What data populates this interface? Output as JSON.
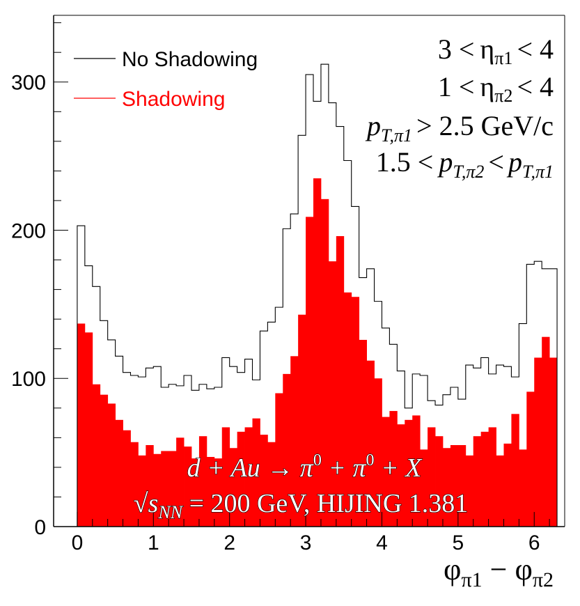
{
  "chart_data": {
    "type": "histogram",
    "x_edges": [
      0,
      0.1,
      0.2,
      0.3,
      0.4,
      0.5,
      0.6,
      0.7,
      0.8,
      0.9,
      1.0,
      1.1,
      1.2,
      1.3,
      1.4,
      1.5,
      1.6,
      1.7,
      1.8,
      1.9,
      2.0,
      2.1,
      2.2,
      2.3,
      2.4,
      2.5,
      2.6,
      2.7,
      2.8,
      2.9,
      3.0,
      3.1,
      3.2,
      3.3,
      3.4,
      3.5,
      3.6,
      3.7,
      3.8,
      3.9,
      4.0,
      4.1,
      4.2,
      4.3,
      4.4,
      4.5,
      4.6,
      4.7,
      4.8,
      4.9,
      5.0,
      5.1,
      5.2,
      5.3,
      5.4,
      5.5,
      5.6,
      5.7,
      5.8,
      5.9,
      6.0,
      6.1,
      6.2,
      6.3
    ],
    "series": [
      {
        "name": "No Shadowing",
        "style": "outline",
        "color": "#000000",
        "values": [
          203,
          176,
          162,
          139,
          126,
          115,
          104,
          102,
          101,
          107,
          108,
          94,
          96,
          95,
          102,
          92,
          96,
          93,
          94,
          114,
          108,
          104,
          113,
          99,
          132,
          138,
          148,
          201,
          211,
          264,
          305,
          287,
          312,
          286,
          270,
          247,
          216,
          168,
          174,
          152,
          134,
          123,
          105,
          80,
          103,
          102,
          85,
          82,
          89,
          94,
          86,
          109,
          107,
          114,
          103,
          109,
          108,
          101,
          137,
          177,
          179,
          174,
          174
        ]
      },
      {
        "name": "Shadowing",
        "style": "filled",
        "color": "#ff0000",
        "values": [
          137,
          131,
          96,
          89,
          83,
          72,
          65,
          57,
          48,
          55,
          49,
          51,
          51,
          60,
          54,
          46,
          61,
          47,
          46,
          67,
          53,
          64,
          67,
          73,
          62,
          57,
          90,
          103,
          115,
          143,
          209,
          235,
          221,
          179,
          196,
          158,
          155,
          126,
          112,
          100,
          74,
          78,
          69,
          72,
          75,
          52,
          67,
          61,
          53,
          55,
          55,
          48,
          61,
          64,
          67,
          48,
          56,
          76,
          52,
          91,
          114,
          128,
          114
        ]
      }
    ],
    "xlim": [
      -0.31,
      6.4
    ],
    "ylim": [
      0,
      345
    ],
    "x_ticks": [
      0,
      1,
      2,
      3,
      4,
      5,
      6
    ],
    "y_ticks": [
      0,
      100,
      200,
      300
    ],
    "x_tick_labels": [
      "0",
      "1",
      "2",
      "3",
      "4",
      "5",
      "6"
    ],
    "y_tick_labels": [
      "0",
      "100",
      "200",
      "300"
    ],
    "legend_placement": "top-left",
    "grid": false,
    "xlabel": "φπ1 − φπ2",
    "ylabel": ""
  },
  "legend": [
    {
      "label": "No Shadowing",
      "color": "#000000"
    },
    {
      "label": "Shadowing",
      "color": "#ff0000"
    }
  ],
  "cuts": {
    "line1": {
      "lo": "3 <",
      "var": "η",
      "sub": "π1",
      "hi": "< 4"
    },
    "line2": {
      "lo": "1 <",
      "var": "η",
      "sub": "π2",
      "hi": "< 4"
    },
    "line3": {
      "var": "p",
      "sub": "T,π1",
      "hi": "> 2.5 GeV/c"
    },
    "line4": {
      "lo": "1.5 <",
      "var": "p",
      "sub": "T,π2",
      "mid": "<",
      "var2": "p",
      "sub2": "T,π1"
    }
  },
  "process": {
    "reaction": "d + Au → π",
    "sup0": "0",
    "plus": " + π",
    "sup1": "0",
    "tail": " + X",
    "energy_sqrt": "√",
    "energy_s": "s",
    "energy_sub": "NN",
    "energy_tail": " = 200 GeV,  HIJING 1.381"
  },
  "axis_title": {
    "phi1": "φ",
    "sub1": "π1",
    "minus": " − ",
    "phi2": "φ",
    "sub2": "π2"
  }
}
